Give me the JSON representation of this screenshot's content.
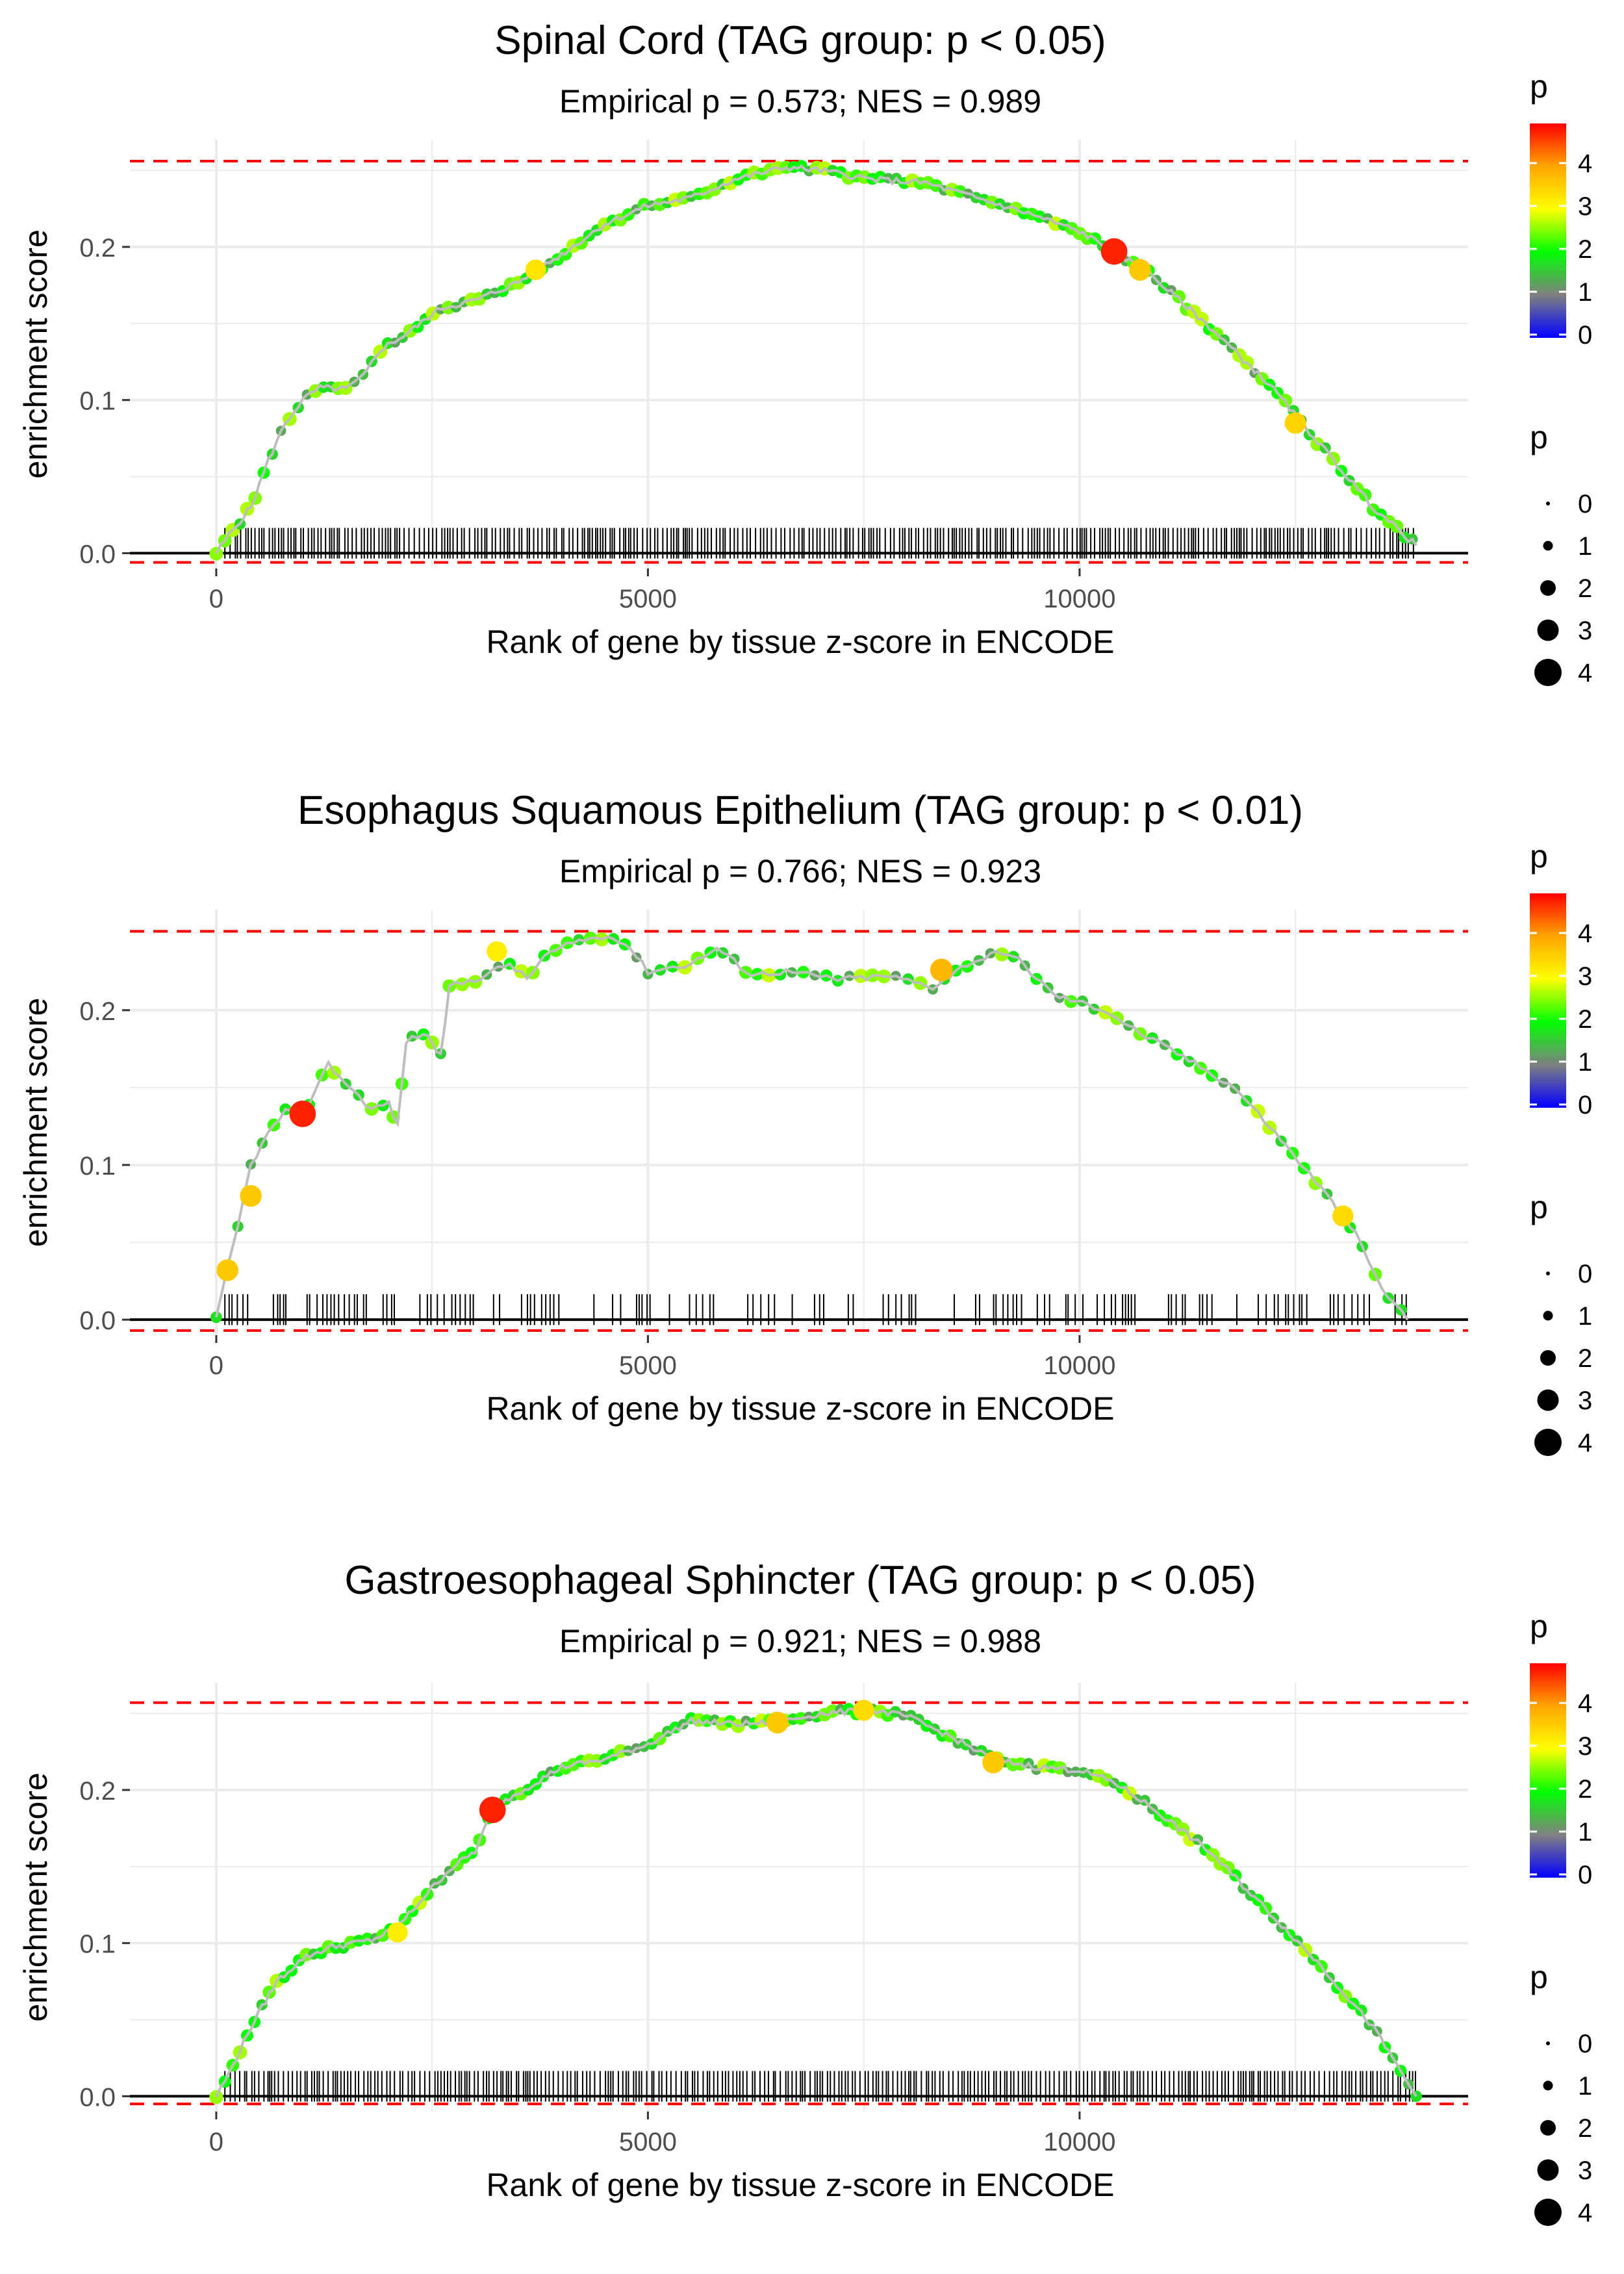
{
  "chart_data": [
    {
      "type": "line",
      "title": "Spinal Cord (TAG group: p < 0.05)",
      "subtitle": "Empirical p = 0.573; NES = 0.989",
      "xlabel": "Rank of gene by tissue z-score in ENCODE",
      "ylabel": "enrichment score",
      "xlim": [
        -1000,
        14500
      ],
      "ylim": [
        -0.01,
        0.27
      ],
      "x_ticks": [
        "0",
        "5000",
        "10000"
      ],
      "y_ticks": [
        "0.0",
        "0.1",
        "0.2"
      ],
      "max_es": 0.256,
      "min_es": -0.006,
      "rug_range": [
        100,
        13900
      ],
      "rug_density": "dense",
      "curve_points": [
        [
          0,
          0.0
        ],
        [
          150,
          0.012
        ],
        [
          400,
          0.03
        ],
        [
          600,
          0.06
        ],
        [
          800,
          0.085
        ],
        [
          1000,
          0.1
        ],
        [
          1200,
          0.108
        ],
        [
          1500,
          0.107
        ],
        [
          1700,
          0.115
        ],
        [
          1900,
          0.133
        ],
        [
          2200,
          0.143
        ],
        [
          2600,
          0.16
        ],
        [
          3000,
          0.165
        ],
        [
          3500,
          0.177
        ],
        [
          4000,
          0.195
        ],
        [
          4500,
          0.215
        ],
        [
          5000,
          0.227
        ],
        [
          5500,
          0.232
        ],
        [
          6000,
          0.244
        ],
        [
          6600,
          0.252
        ],
        [
          7000,
          0.25
        ],
        [
          7600,
          0.244
        ],
        [
          8200,
          0.242
        ],
        [
          8800,
          0.232
        ],
        [
          9400,
          0.222
        ],
        [
          10000,
          0.21
        ],
        [
          10400,
          0.197
        ],
        [
          10800,
          0.183
        ],
        [
          11500,
          0.148
        ],
        [
          12200,
          0.11
        ],
        [
          12800,
          0.07
        ],
        [
          13400,
          0.03
        ],
        [
          13900,
          0.005
        ]
      ],
      "highlight_points": [
        {
          "x": 10400,
          "y": 0.197,
          "p": 4.8
        },
        {
          "x": 10700,
          "y": 0.185,
          "p": 3.6
        },
        {
          "x": 3700,
          "y": 0.185,
          "p": 3.3
        },
        {
          "x": 12500,
          "y": 0.085,
          "p": 3.5
        }
      ]
    },
    {
      "type": "line",
      "title": "Esophagus Squamous Epithelium (TAG group: p < 0.01)",
      "subtitle": "Empirical p = 0.766; NES = 0.923",
      "xlabel": "Rank of gene by tissue z-score in ENCODE",
      "ylabel": "enrichment score",
      "xlim": [
        -1000,
        14500
      ],
      "ylim": [
        -0.01,
        0.265
      ],
      "x_ticks": [
        "0",
        "5000",
        "10000"
      ],
      "y_ticks": [
        "0.0",
        "0.1",
        "0.2"
      ],
      "max_es": 0.251,
      "min_es": -0.007,
      "rug_range": [
        100,
        13900
      ],
      "rug_density": "sparse",
      "curve_points": [
        [
          0,
          0.0
        ],
        [
          120,
          0.03
        ],
        [
          250,
          0.06
        ],
        [
          400,
          0.1
        ],
        [
          600,
          0.12
        ],
        [
          800,
          0.135
        ],
        [
          1000,
          0.13
        ],
        [
          1150,
          0.15
        ],
        [
          1300,
          0.165
        ],
        [
          1500,
          0.153
        ],
        [
          1800,
          0.136
        ],
        [
          2000,
          0.14
        ],
        [
          2100,
          0.125
        ],
        [
          2200,
          0.18
        ],
        [
          2400,
          0.185
        ],
        [
          2500,
          0.18
        ],
        [
          2600,
          0.17
        ],
        [
          2700,
          0.215
        ],
        [
          3000,
          0.22
        ],
        [
          3200,
          0.225
        ],
        [
          3400,
          0.23
        ],
        [
          3600,
          0.22
        ],
        [
          3800,
          0.235
        ],
        [
          4200,
          0.245
        ],
        [
          4600,
          0.248
        ],
        [
          4800,
          0.24
        ],
        [
          5000,
          0.225
        ],
        [
          5500,
          0.23
        ],
        [
          5800,
          0.24
        ],
        [
          6200,
          0.223
        ],
        [
          6600,
          0.225
        ],
        [
          7200,
          0.22
        ],
        [
          7800,
          0.222
        ],
        [
          8300,
          0.215
        ],
        [
          8700,
          0.23
        ],
        [
          9100,
          0.238
        ],
        [
          9300,
          0.232
        ],
        [
          9700,
          0.21
        ],
        [
          10300,
          0.2
        ],
        [
          10700,
          0.185
        ],
        [
          11200,
          0.17
        ],
        [
          11800,
          0.15
        ],
        [
          12200,
          0.125
        ],
        [
          12800,
          0.085
        ],
        [
          13200,
          0.055
        ],
        [
          13500,
          0.02
        ],
        [
          13800,
          0.0
        ]
      ],
      "highlight_points": [
        {
          "x": 1000,
          "y": 0.133,
          "p": 4.8
        },
        {
          "x": 8400,
          "y": 0.226,
          "p": 3.8
        },
        {
          "x": 130,
          "y": 0.032,
          "p": 3.6
        },
        {
          "x": 400,
          "y": 0.08,
          "p": 3.6
        },
        {
          "x": 3250,
          "y": 0.238,
          "p": 3.2
        },
        {
          "x": 13050,
          "y": 0.067,
          "p": 3.4
        }
      ]
    },
    {
      "type": "line",
      "title": "Gastroesophageal Sphincter (TAG group: p < 0.05)",
      "subtitle": "Empirical p = 0.921; NES = 0.988",
      "xlabel": "Rank of gene by tissue z-score in ENCODE",
      "ylabel": "enrichment score",
      "xlim": [
        -1000,
        14500
      ],
      "ylim": [
        -0.01,
        0.27
      ],
      "x_ticks": [
        "0",
        "5000",
        "10000"
      ],
      "y_ticks": [
        "0.0",
        "0.1",
        "0.2"
      ],
      "max_es": 0.257,
      "min_es": -0.005,
      "rug_range": [
        100,
        13900
      ],
      "rug_density": "dense",
      "curve_points": [
        [
          0,
          0.0
        ],
        [
          150,
          0.015
        ],
        [
          400,
          0.045
        ],
        [
          700,
          0.075
        ],
        [
          1000,
          0.09
        ],
        [
          1300,
          0.097
        ],
        [
          1600,
          0.1
        ],
        [
          1800,
          0.102
        ],
        [
          2100,
          0.11
        ],
        [
          2400,
          0.13
        ],
        [
          2700,
          0.148
        ],
        [
          3000,
          0.16
        ],
        [
          3200,
          0.187
        ],
        [
          3400,
          0.195
        ],
        [
          3700,
          0.205
        ],
        [
          4000,
          0.215
        ],
        [
          4500,
          0.22
        ],
        [
          5000,
          0.23
        ],
        [
          5500,
          0.245
        ],
        [
          6000,
          0.243
        ],
        [
          6500,
          0.244
        ],
        [
          7000,
          0.25
        ],
        [
          7600,
          0.252
        ],
        [
          8000,
          0.248
        ],
        [
          8500,
          0.235
        ],
        [
          9000,
          0.22
        ],
        [
          9500,
          0.215
        ],
        [
          10000,
          0.213
        ],
        [
          10400,
          0.205
        ],
        [
          10800,
          0.19
        ],
        [
          11500,
          0.16
        ],
        [
          12200,
          0.12
        ],
        [
          12800,
          0.085
        ],
        [
          13400,
          0.045
        ],
        [
          13900,
          0.0
        ]
      ],
      "highlight_points": [
        {
          "x": 3200,
          "y": 0.187,
          "p": 4.8
        },
        {
          "x": 6500,
          "y": 0.244,
          "p": 3.6
        },
        {
          "x": 9000,
          "y": 0.218,
          "p": 3.6
        },
        {
          "x": 7500,
          "y": 0.252,
          "p": 3.4
        },
        {
          "x": 2100,
          "y": 0.107,
          "p": 3.2
        }
      ]
    }
  ],
  "legend": {
    "color_title": "p",
    "color_ticks": [
      "0",
      "1",
      "2",
      "3",
      "4"
    ],
    "color_stops": [
      "#0000ff",
      "#808080",
      "#00ff00",
      "#ffff00",
      "#ffa500",
      "#ff0000"
    ],
    "size_title": "p",
    "size_labels": [
      "0",
      "1",
      "2",
      "3",
      "4"
    ]
  },
  "colors": {
    "panel_bg": "#ffffff",
    "grid": "#ebebeb",
    "dashed": "#ff0000",
    "zero_line": "#000000",
    "curve": "#bebebe",
    "rug": "#000000"
  }
}
